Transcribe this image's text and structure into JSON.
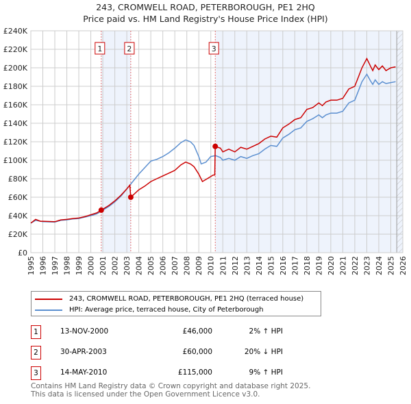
{
  "chart_data": {
    "type": "line",
    "title": "243, CROMWELL ROAD, PETERBOROUGH, PE1 2HQ",
    "subtitle": "Price paid vs. HM Land Registry's House Price Index (HPI)",
    "xlim": [
      1995,
      2026
    ],
    "ylim": [
      0,
      240000
    ],
    "x_ticks": [
      "1995",
      "1996",
      "1997",
      "1998",
      "1999",
      "2000",
      "2001",
      "2002",
      "2003",
      "2004",
      "2005",
      "2006",
      "2007",
      "2008",
      "2009",
      "2010",
      "2011",
      "2012",
      "2013",
      "2014",
      "2015",
      "2016",
      "2017",
      "2018",
      "2019",
      "2020",
      "2021",
      "2022",
      "2023",
      "2024",
      "2025",
      "2026"
    ],
    "y_ticks": [
      {
        "v": 0,
        "l": "£0"
      },
      {
        "v": 20000,
        "l": "£20K"
      },
      {
        "v": 40000,
        "l": "£40K"
      },
      {
        "v": 60000,
        "l": "£60K"
      },
      {
        "v": 80000,
        "l": "£80K"
      },
      {
        "v": 100000,
        "l": "£100K"
      },
      {
        "v": 120000,
        "l": "£120K"
      },
      {
        "v": 140000,
        "l": "£140K"
      },
      {
        "v": 160000,
        "l": "£160K"
      },
      {
        "v": 180000,
        "l": "£180K"
      },
      {
        "v": 200000,
        "l": "£200K"
      },
      {
        "v": 220000,
        "l": "£220K"
      },
      {
        "v": 240000,
        "l": "£240K"
      }
    ],
    "grid": true,
    "shaded_ranges": [
      [
        2000.87,
        2003.33
      ],
      [
        2010.37,
        2026
      ]
    ],
    "hatched_from": 2025.5,
    "series": [
      {
        "name": "243, CROMWELL ROAD, PETERBOROUGH, PE1 2HQ (terraced house)",
        "color": "#cc0000",
        "x": [
          1995,
          1995.4,
          1995.8,
          1996,
          1997,
          1997.5,
          1998,
          1998.5,
          1999,
          1999.5,
          2000,
          2000.5,
          2000.87,
          2001.5,
          2002,
          2002.5,
          2003,
          2003.25,
          2003.33,
          2004,
          2004.5,
          2005,
          2005.5,
          2006,
          2006.5,
          2007,
          2007.5,
          2007.9,
          2008.3,
          2008.6,
          2009,
          2009.3,
          2009.7,
          2010.2,
          2010.33,
          2010.37,
          2010.8,
          2011,
          2011.5,
          2012,
          2012.5,
          2013,
          2013.5,
          2014,
          2014.5,
          2015,
          2015.5,
          2016,
          2016.5,
          2017,
          2017.5,
          2018,
          2018.5,
          2019,
          2019.3,
          2019.6,
          2020,
          2020.5,
          2021,
          2021.5,
          2022,
          2022.3,
          2022.6,
          2023,
          2023.3,
          2023.5,
          2023.7,
          2024,
          2024.3,
          2024.6,
          2025,
          2025.4
        ],
        "y": [
          32000,
          36000,
          34000,
          34000,
          33500,
          35500,
          36000,
          37000,
          37500,
          39000,
          41000,
          43000,
          46000,
          51000,
          56000,
          62000,
          69000,
          73000,
          60000,
          68000,
          72000,
          77000,
          80000,
          83000,
          86000,
          89000,
          95000,
          98000,
          96000,
          93000,
          85000,
          77000,
          80000,
          84000,
          84000,
          115000,
          113000,
          109000,
          112000,
          109000,
          114000,
          112000,
          115000,
          118000,
          123000,
          126000,
          125000,
          135000,
          139000,
          144000,
          146000,
          155000,
          157000,
          162000,
          159000,
          163000,
          165000,
          165000,
          167000,
          177000,
          180000,
          190000,
          200000,
          210000,
          202000,
          197000,
          203000,
          198000,
          202000,
          197000,
          200000,
          201000
        ]
      },
      {
        "name": "HPI: Average price, terraced house, City of Peterborough",
        "color": "#5b8fd0",
        "x": [
          1995,
          1995.4,
          1995.8,
          1996,
          1997,
          1997.5,
          1998,
          1998.5,
          1999,
          1999.5,
          2000,
          2000.5,
          2000.87,
          2001.5,
          2002,
          2002.5,
          2003,
          2003.5,
          2004,
          2004.5,
          2005,
          2005.5,
          2006,
          2006.5,
          2007,
          2007.5,
          2007.9,
          2008.3,
          2008.6,
          2009,
          2009.2,
          2009.6,
          2010,
          2010.4,
          2010.8,
          2011,
          2011.5,
          2012,
          2012.5,
          2013,
          2013.5,
          2014,
          2014.5,
          2015,
          2015.5,
          2016,
          2016.5,
          2017,
          2017.5,
          2018,
          2018.5,
          2019,
          2019.3,
          2019.6,
          2020,
          2020.5,
          2021,
          2021.5,
          2022,
          2022.3,
          2022.6,
          2023,
          2023.3,
          2023.5,
          2023.7,
          2024,
          2024.3,
          2024.6,
          2025,
          2025.4
        ],
        "y": [
          32000,
          35000,
          34000,
          33500,
          33000,
          35000,
          35500,
          36500,
          37000,
          38500,
          40000,
          42000,
          45000,
          50000,
          55000,
          61000,
          69000,
          77000,
          85000,
          92000,
          99000,
          101000,
          104000,
          108000,
          113000,
          119000,
          122000,
          120000,
          116000,
          104000,
          96000,
          98000,
          104000,
          105000,
          103000,
          100000,
          102000,
          100000,
          104000,
          102000,
          105000,
          107000,
          112000,
          116000,
          115000,
          124000,
          128000,
          133000,
          135000,
          142000,
          145000,
          149000,
          146000,
          149000,
          151000,
          151000,
          153000,
          162000,
          165000,
          175000,
          185000,
          193000,
          186000,
          182000,
          187000,
          182000,
          185000,
          183000,
          184000,
          185000
        ]
      }
    ],
    "sales": [
      {
        "id": "1",
        "x": 2000.87,
        "y": 46000
      },
      {
        "id": "2",
        "x": 2003.33,
        "y": 60000
      },
      {
        "id": "3",
        "x": 2010.37,
        "y": 115000
      }
    ]
  },
  "transactions": [
    {
      "id": "1",
      "date": "13-NOV-2000",
      "price": "£46,000",
      "hpi": "2% ↑ HPI"
    },
    {
      "id": "2",
      "date": "30-APR-2003",
      "price": "£60,000",
      "hpi": "20% ↓ HPI"
    },
    {
      "id": "3",
      "date": "14-MAY-2010",
      "price": "£115,000",
      "hpi": "9% ↑ HPI"
    }
  ],
  "footer": {
    "line1": "Contains HM Land Registry data © Crown copyright and database right 2025.",
    "line2": "This data is licensed under the Open Government Licence v3.0."
  }
}
